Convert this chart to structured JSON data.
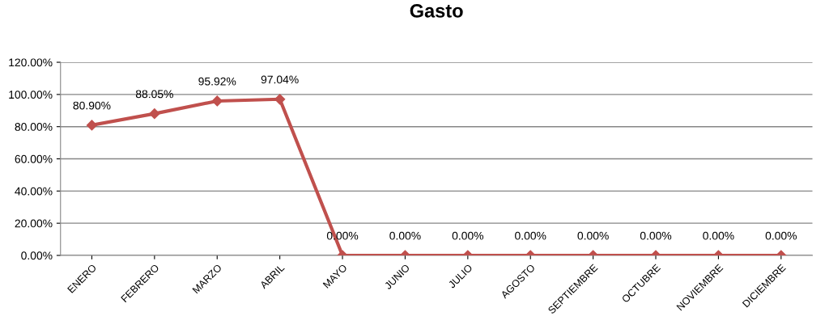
{
  "chart_data": {
    "type": "line",
    "title": "Gasto",
    "categories": [
      "ENERO",
      "FEBRERO",
      "MARZO",
      "ABRIL",
      "MAYO",
      "JUNIO",
      "JULIO",
      "AGOSTO",
      "SEPTIEMBRE",
      "OCTUBRE",
      "NOVIEMBRE",
      "DICIEMBRE"
    ],
    "series": [
      {
        "color": "#c0504d",
        "values": [
          80.9,
          88.05,
          95.92,
          97.04,
          0,
          0,
          0,
          0,
          0,
          0,
          0,
          0
        ],
        "value_labels": [
          "80.90%",
          "88.05%",
          "95.92%",
          "97.04%",
          "0.00%",
          "0.00%",
          "0.00%",
          "0.00%",
          "0.00%",
          "0.00%",
          "0.00%",
          "0.00%"
        ]
      }
    ],
    "ylim": [
      0,
      120
    ],
    "yticks": [
      {
        "value": 0,
        "label": "0.00%"
      },
      {
        "value": 20,
        "label": "20.00%"
      },
      {
        "value": 40,
        "label": "40.00%"
      },
      {
        "value": 60,
        "label": "60.00%"
      },
      {
        "value": 80,
        "label": "80.00%"
      },
      {
        "value": 100,
        "label": "100.00%"
      },
      {
        "value": 120,
        "label": "120.00%"
      }
    ],
    "grid": "y",
    "legend": false,
    "marker": "diamond",
    "line_style": "solid"
  }
}
